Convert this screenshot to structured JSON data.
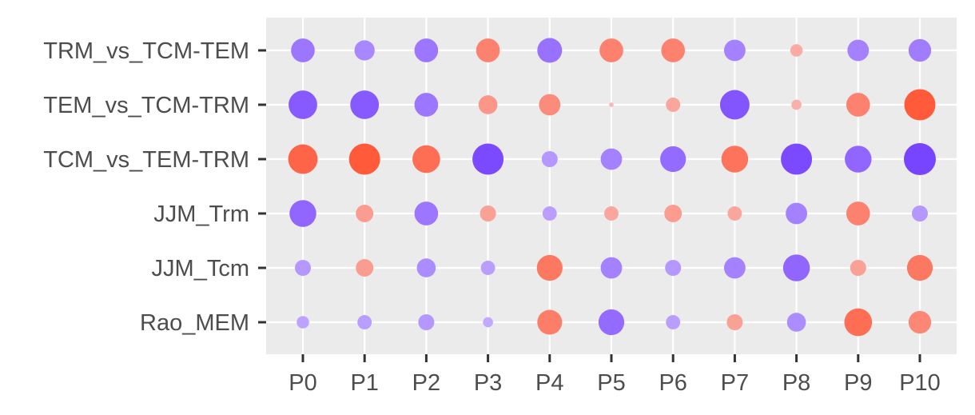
{
  "chart_data": {
    "type": "scatter",
    "title": "",
    "xlabel": "",
    "ylabel": "",
    "x_categories": [
      "P0",
      "P1",
      "P2",
      "P3",
      "P4",
      "P5",
      "P6",
      "P7",
      "P8",
      "P9",
      "P10"
    ],
    "y_categories": [
      "TRM_vs_TCM-TEM",
      "TEM_vs_TCM-TRM",
      "TCM_vs_TEM-TRM",
      "JJM_Trm",
      "JJM_Tcm",
      "Rao_MEM"
    ],
    "legend": "none",
    "grid": true,
    "colors": {
      "positive": "#ff5533",
      "negative": "#7744ff",
      "panel": "#ebebeb",
      "grid": "#ffffff"
    },
    "note_value_meaning": "signed effect: positive values drawn orange-red, negative drawn purple; magnitude shown by dot size and color intensity",
    "values": [
      [
        -0.55,
        -0.4,
        -0.55,
        0.55,
        -0.6,
        0.55,
        0.55,
        -0.45,
        0.15,
        -0.45,
        -0.5
      ],
      [
        -0.8,
        -0.8,
        -0.55,
        0.35,
        0.45,
        0.02,
        0.2,
        -0.85,
        0.1,
        0.55,
        0.95
      ],
      [
        0.85,
        0.95,
        0.75,
        -0.95,
        -0.25,
        -0.45,
        -0.65,
        0.7,
        -0.95,
        -0.7,
        -1.0
      ],
      [
        -0.7,
        0.3,
        -0.55,
        0.25,
        -0.2,
        0.2,
        0.3,
        0.2,
        -0.45,
        0.55,
        -0.25
      ],
      [
        -0.25,
        0.3,
        -0.35,
        -0.2,
        0.65,
        -0.45,
        -0.25,
        -0.45,
        -0.7,
        0.25,
        0.65
      ],
      [
        -0.15,
        -0.2,
        -0.25,
        -0.1,
        0.6,
        -0.65,
        -0.2,
        0.25,
        -0.35,
        0.75,
        0.5
      ]
    ]
  }
}
